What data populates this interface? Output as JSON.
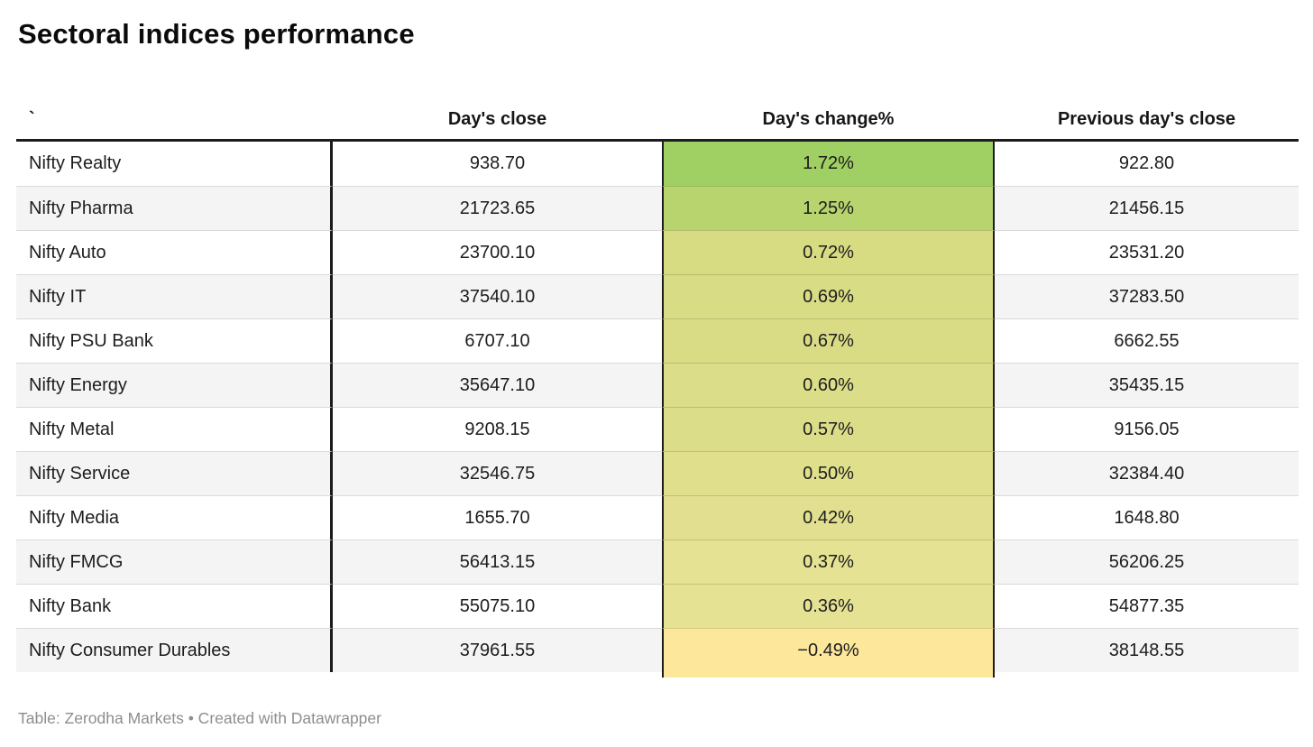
{
  "title": "Sectoral indices performance",
  "footer": {
    "text": "Table: Zerodha Markets • Created with Datawrapper"
  },
  "chart_data": {
    "type": "table",
    "title": "Sectoral indices performance",
    "source": "Zerodha Markets",
    "columns": [
      "`",
      "Day's close",
      "Day's change%",
      "Previous day's close"
    ],
    "heatmap_column": "Day's change%",
    "heatmap_palette": [
      "#A0CF64",
      "#FCE79B"
    ],
    "rows": [
      {
        "name": "Nifty Realty",
        "close": "938.70",
        "change": "1.72%",
        "prev": "922.80",
        "change_color": "#A0CF64"
      },
      {
        "name": "Nifty Pharma",
        "close": "21723.65",
        "change": "1.25%",
        "prev": "21456.15",
        "change_color": "#B7D46F"
      },
      {
        "name": "Nifty Auto",
        "close": "23700.10",
        "change": "0.72%",
        "prev": "23531.20",
        "change_color": "#D7DB82"
      },
      {
        "name": "Nifty IT",
        "close": "37540.10",
        "change": "0.69%",
        "prev": "37283.50",
        "change_color": "#D8DC84"
      },
      {
        "name": "Nifty PSU Bank",
        "close": "6707.10",
        "change": "0.67%",
        "prev": "6662.55",
        "change_color": "#D9DC85"
      },
      {
        "name": "Nifty Energy",
        "close": "35647.10",
        "change": "0.60%",
        "prev": "35435.15",
        "change_color": "#DBDD88"
      },
      {
        "name": "Nifty Metal",
        "close": "9208.15",
        "change": "0.57%",
        "prev": "9156.05",
        "change_color": "#DCDD89"
      },
      {
        "name": "Nifty Service",
        "close": "32546.75",
        "change": "0.50%",
        "prev": "32384.40",
        "change_color": "#DFDF8C"
      },
      {
        "name": "Nifty Media",
        "close": "1655.70",
        "change": "0.42%",
        "prev": "1648.80",
        "change_color": "#E2E090"
      },
      {
        "name": "Nifty FMCG",
        "close": "56413.15",
        "change": "0.37%",
        "prev": "56206.25",
        "change_color": "#E5E293"
      },
      {
        "name": "Nifty Bank",
        "close": "55075.10",
        "change": "0.36%",
        "prev": "54877.35",
        "change_color": "#E6E294"
      },
      {
        "name": "Nifty Consumer Durables",
        "close": "37961.55",
        "change": "−0.49%",
        "prev": "38148.55",
        "change_color": "#FCE79B"
      }
    ]
  }
}
